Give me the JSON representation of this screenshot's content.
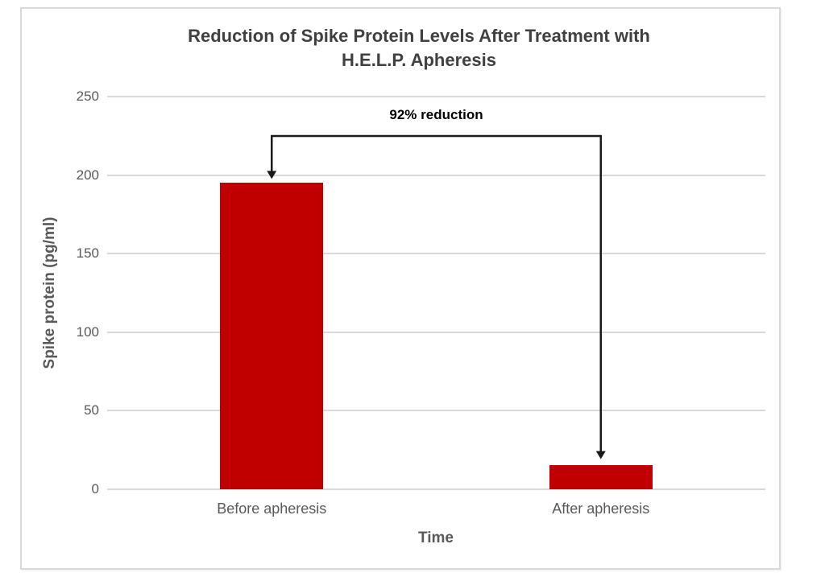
{
  "chart_data": {
    "type": "bar",
    "title": "Reduction of Spike Protein Levels After Treatment with H.E.L.P. Apheresis",
    "title_lines": [
      "Reduction of Spike Protein Levels After Treatment with",
      "H.E.L.P. Apheresis"
    ],
    "categories": [
      "Before apheresis",
      "After apheresis"
    ],
    "values": [
      195,
      15.6
    ],
    "xlabel": "Time",
    "ylabel": "Spike protein (pg/ml)",
    "ylim": [
      0,
      250
    ],
    "yticks": [
      0,
      50,
      100,
      150,
      200,
      250
    ],
    "grid": true,
    "legend": false,
    "annotation": {
      "text": "92% reduction",
      "from_category": "Before apheresis",
      "to_category": "After apheresis"
    },
    "colors": {
      "bar": "#c00000",
      "title_text": "#404040",
      "axis_text": "#595959",
      "gridline": "#d9d9d9",
      "frame_border": "#d9d9d9",
      "annotation": "#000000"
    }
  }
}
